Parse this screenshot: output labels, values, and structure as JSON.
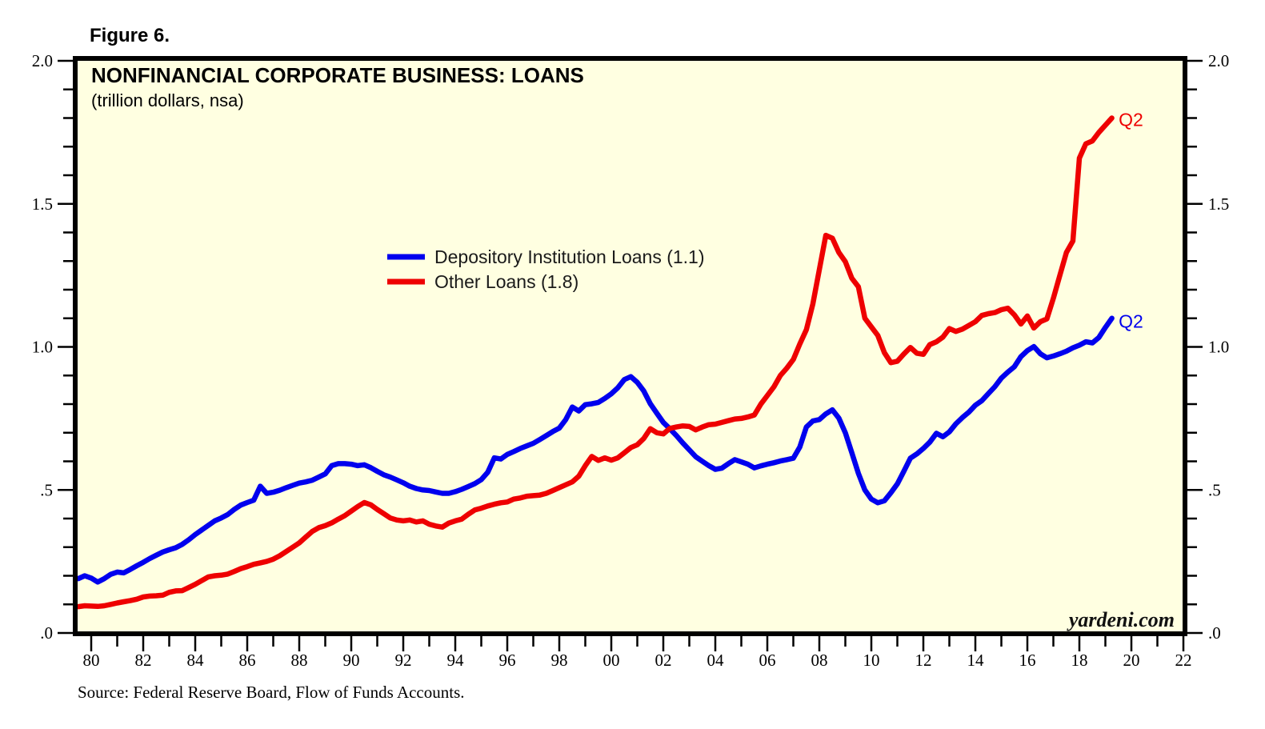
{
  "figure_label": "Figure 6.",
  "chart_data": {
    "type": "line",
    "title": "NONFINANCIAL CORPORATE BUSINESS: LOANS",
    "subtitle": "(trillion dollars, nsa)",
    "source_note": "Source: Federal Reserve Board, Flow of Funds Accounts.",
    "watermark": "yardeni.com",
    "background": "#ffffe1",
    "grid": "off",
    "legend_position": "inside-upper-middle-left",
    "x_axis": {
      "unit": "year (quarterly data)",
      "min": 1979.45,
      "max": 2022.3,
      "minor_step_years": 1,
      "ticks": [
        {
          "year": 1980,
          "label": "80"
        },
        {
          "year": 1982,
          "label": "82"
        },
        {
          "year": 1984,
          "label": "84"
        },
        {
          "year": 1986,
          "label": "86"
        },
        {
          "year": 1988,
          "label": "88"
        },
        {
          "year": 1990,
          "label": "90"
        },
        {
          "year": 1992,
          "label": "92"
        },
        {
          "year": 1994,
          "label": "94"
        },
        {
          "year": 1996,
          "label": "96"
        },
        {
          "year": 1998,
          "label": "98"
        },
        {
          "year": 2000,
          "label": "00"
        },
        {
          "year": 2002,
          "label": "02"
        },
        {
          "year": 2004,
          "label": "04"
        },
        {
          "year": 2006,
          "label": "06"
        },
        {
          "year": 2008,
          "label": "08"
        },
        {
          "year": 2010,
          "label": "10"
        },
        {
          "year": 2012,
          "label": "12"
        },
        {
          "year": 2014,
          "label": "14"
        },
        {
          "year": 2016,
          "label": "16"
        },
        {
          "year": 2018,
          "label": "18"
        },
        {
          "year": 2020,
          "label": "20"
        },
        {
          "year": 2022,
          "label": "22"
        }
      ]
    },
    "y_axis": {
      "unit": "trillion dollars",
      "min": 0.0,
      "max": 2.0,
      "minor_step": 0.1,
      "ticks": [
        {
          "v": 0.0,
          "label": ".0"
        },
        {
          "v": 0.5,
          "label": ".5"
        },
        {
          "v": 1.0,
          "label": "1.0"
        },
        {
          "v": 1.5,
          "label": "1.5"
        },
        {
          "v": 2.0,
          "label": "2.0"
        }
      ]
    },
    "series": [
      {
        "name": "Depository Institution Loans",
        "legend": "Depository Institution Loans (1.1)",
        "latest_value": 1.1,
        "latest_period": "Q2",
        "color": "#0000ee",
        "start": 1979.5,
        "step": 0.25,
        "values": [
          0.19,
          0.2,
          0.192,
          0.178,
          0.19,
          0.205,
          0.213,
          0.21,
          0.222,
          0.235,
          0.247,
          0.26,
          0.272,
          0.283,
          0.291,
          0.298,
          0.31,
          0.326,
          0.344,
          0.36,
          0.376,
          0.392,
          0.402,
          0.414,
          0.432,
          0.447,
          0.456,
          0.464,
          0.513,
          0.488,
          0.492,
          0.499,
          0.508,
          0.516,
          0.524,
          0.528,
          0.534,
          0.545,
          0.556,
          0.585,
          0.592,
          0.592,
          0.59,
          0.585,
          0.588,
          0.578,
          0.565,
          0.553,
          0.545,
          0.535,
          0.525,
          0.513,
          0.505,
          0.5,
          0.498,
          0.493,
          0.488,
          0.488,
          0.494,
          0.502,
          0.512,
          0.522,
          0.536,
          0.562,
          0.612,
          0.608,
          0.624,
          0.634,
          0.645,
          0.654,
          0.663,
          0.676,
          0.69,
          0.704,
          0.716,
          0.746,
          0.79,
          0.776,
          0.798,
          0.801,
          0.806,
          0.82,
          0.836,
          0.857,
          0.886,
          0.896,
          0.876,
          0.846,
          0.801,
          0.768,
          0.736,
          0.714,
          0.69,
          0.664,
          0.64,
          0.616,
          0.6,
          0.585,
          0.572,
          0.576,
          0.592,
          0.606,
          0.598,
          0.59,
          0.577,
          0.584,
          0.59,
          0.595,
          0.601,
          0.606,
          0.611,
          0.65,
          0.72,
          0.741,
          0.746,
          0.766,
          0.78,
          0.751,
          0.7,
          0.63,
          0.558,
          0.5,
          0.468,
          0.455,
          0.462,
          0.49,
          0.521,
          0.565,
          0.611,
          0.626,
          0.645,
          0.667,
          0.698,
          0.686,
          0.703,
          0.731,
          0.753,
          0.772,
          0.796,
          0.812,
          0.837,
          0.861,
          0.891,
          0.912,
          0.931,
          0.966,
          0.987,
          1.001,
          0.976,
          0.962,
          0.968,
          0.976,
          0.985,
          0.997,
          1.006,
          1.018,
          1.014,
          1.033,
          1.068,
          1.1
        ]
      },
      {
        "name": "Other Loans",
        "legend": "Other Loans (1.8)",
        "latest_value": 1.8,
        "latest_period": "Q2",
        "color": "#ee0000",
        "start": 1979.5,
        "step": 0.25,
        "values": [
          0.092,
          0.095,
          0.094,
          0.093,
          0.095,
          0.1,
          0.105,
          0.109,
          0.113,
          0.118,
          0.126,
          0.129,
          0.13,
          0.132,
          0.142,
          0.147,
          0.148,
          0.159,
          0.17,
          0.183,
          0.196,
          0.2,
          0.202,
          0.206,
          0.215,
          0.225,
          0.232,
          0.24,
          0.245,
          0.25,
          0.258,
          0.27,
          0.285,
          0.3,
          0.315,
          0.335,
          0.355,
          0.368,
          0.375,
          0.385,
          0.398,
          0.41,
          0.426,
          0.442,
          0.456,
          0.448,
          0.432,
          0.417,
          0.402,
          0.395,
          0.392,
          0.395,
          0.388,
          0.392,
          0.38,
          0.374,
          0.37,
          0.384,
          0.392,
          0.398,
          0.415,
          0.43,
          0.436,
          0.444,
          0.45,
          0.455,
          0.458,
          0.468,
          0.472,
          0.478,
          0.48,
          0.482,
          0.488,
          0.498,
          0.508,
          0.518,
          0.528,
          0.548,
          0.585,
          0.617,
          0.603,
          0.612,
          0.604,
          0.612,
          0.63,
          0.648,
          0.658,
          0.68,
          0.714,
          0.7,
          0.696,
          0.715,
          0.72,
          0.724,
          0.722,
          0.71,
          0.72,
          0.728,
          0.73,
          0.736,
          0.742,
          0.748,
          0.75,
          0.755,
          0.762,
          0.8,
          0.83,
          0.86,
          0.9,
          0.926,
          0.956,
          1.01,
          1.06,
          1.15,
          1.27,
          1.39,
          1.38,
          1.33,
          1.298,
          1.24,
          1.21,
          1.1,
          1.07,
          1.04,
          0.98,
          0.945,
          0.95,
          0.975,
          0.998,
          0.978,
          0.974,
          1.008,
          1.018,
          1.034,
          1.064,
          1.054,
          1.062,
          1.075,
          1.088,
          1.11,
          1.116,
          1.12,
          1.13,
          1.135,
          1.112,
          1.08,
          1.108,
          1.066,
          1.088,
          1.098,
          1.17,
          1.25,
          1.33,
          1.37,
          1.66,
          1.71,
          1.72,
          1.75,
          1.775,
          1.8
        ]
      }
    ],
    "annotations": [
      {
        "text": "Q2",
        "t": 2019.45,
        "v": 1.795,
        "color": "#ee0000"
      },
      {
        "text": "Q2",
        "t": 2019.45,
        "v": 1.09,
        "color": "#0000ee"
      }
    ]
  }
}
